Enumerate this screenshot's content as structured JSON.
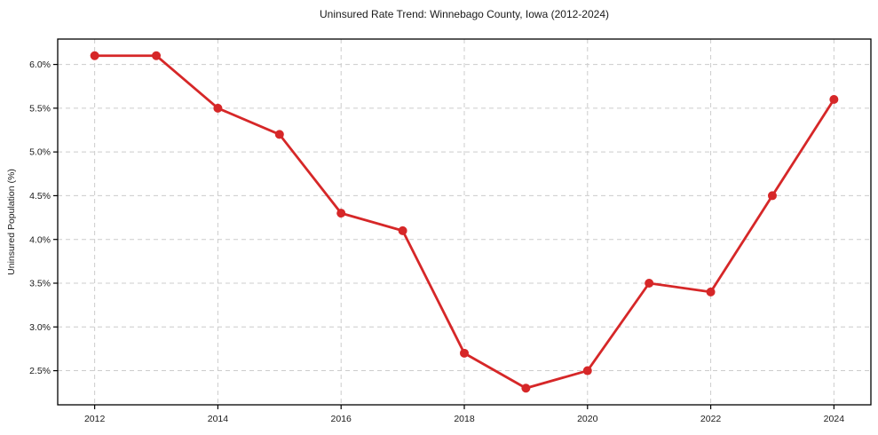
{
  "chart_data": {
    "type": "line",
    "title": "Uninsured Rate Trend: Winnebago County, Iowa (2012-2024)",
    "xlabel": "",
    "ylabel": "Uninsured Population (%)",
    "x": [
      2012,
      2013,
      2014,
      2015,
      2016,
      2017,
      2018,
      2019,
      2020,
      2021,
      2022,
      2023,
      2024
    ],
    "values": [
      6.1,
      6.1,
      5.5,
      5.2,
      4.3,
      4.1,
      2.7,
      2.3,
      2.5,
      3.5,
      3.4,
      4.5,
      5.6
    ],
    "xticks": [
      2012,
      2014,
      2016,
      2018,
      2020,
      2022,
      2024
    ],
    "yticks": [
      2.5,
      3.0,
      3.5,
      4.0,
      4.5,
      5.0,
      5.5,
      6.0
    ],
    "ytick_suffix": "%",
    "xlim": [
      2011.4,
      2024.6
    ],
    "ylim": [
      2.11,
      6.29
    ],
    "grid": true,
    "legend": false,
    "line_color": "#d62728",
    "marker_color": "#d62728",
    "grid_color": "#cccccc",
    "axis_color": "#000000",
    "tick_label_color": "#1a1a1a"
  }
}
